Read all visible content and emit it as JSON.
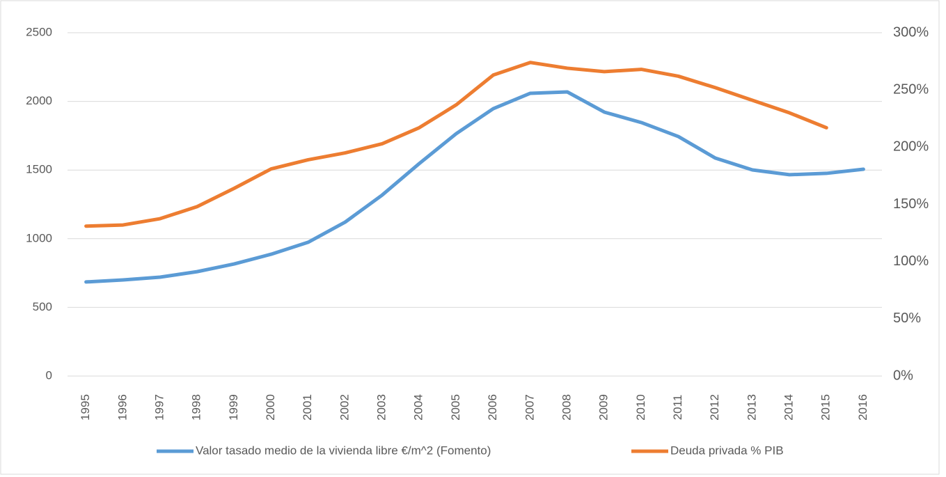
{
  "chart_data": {
    "type": "line",
    "categories": [
      "1995",
      "1996",
      "1997",
      "1998",
      "1999",
      "2000",
      "2001",
      "2002",
      "2003",
      "2004",
      "2005",
      "2006",
      "2007",
      "2008",
      "2009",
      "2010",
      "2011",
      "2012",
      "2013",
      "2014",
      "2015",
      "2016"
    ],
    "series": [
      {
        "name": "Valor tasado medio de la vivienda libre €/m^2 (Fomento)",
        "color": "#5b9bd5",
        "values": [
          685,
          700,
          720,
          760,
          816,
          887,
          974,
          1121,
          1318,
          1547,
          1765,
          1947,
          2059,
          2069,
          1922,
          1846,
          1744,
          1587,
          1501,
          1466,
          1476,
          1506
        ]
      },
      {
        "name": "Deuda privada % PIB",
        "color": "#ed7d31",
        "axis": "y2",
        "values": [
          131,
          132,
          137.5,
          148,
          164,
          181,
          189,
          195,
          203,
          217,
          237,
          263,
          274,
          269,
          266,
          268,
          262,
          252,
          241,
          230,
          217,
          null
        ]
      }
    ],
    "ylim": [
      0,
      2500
    ],
    "yticks": [
      0,
      500,
      1000,
      1500,
      2000,
      2500
    ],
    "y2lim": [
      0,
      300
    ],
    "y2ticks": [
      {
        "value": 0,
        "label": "0%"
      },
      {
        "value": 50,
        "label": "50%"
      },
      {
        "value": 100,
        "label": "100%"
      },
      {
        "value": 150,
        "label": "150%"
      },
      {
        "value": 200,
        "label": "200%"
      },
      {
        "value": 250,
        "label": "250%"
      },
      {
        "value": 300,
        "label": "300%"
      }
    ],
    "grid": true,
    "legend": "bottom"
  }
}
